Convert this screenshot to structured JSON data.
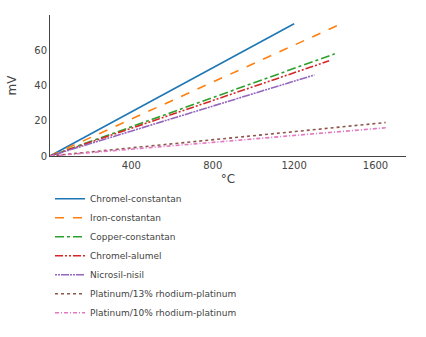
{
  "chart_data": {
    "type": "line",
    "xlabel": "°C",
    "ylabel": "mV",
    "xlim": [
      0,
      1750
    ],
    "ylim": [
      0,
      80
    ],
    "xticks": [
      400,
      800,
      1200,
      1600
    ],
    "yticks": [
      0,
      20,
      40,
      60
    ],
    "grid": false,
    "legend": "bottom",
    "series": [
      {
        "name": "Chromel-constantan",
        "x": [
          0,
          1200
        ],
        "values": [
          0,
          75
        ],
        "line_style": "solid"
      },
      {
        "name": "Iron-constantan",
        "x": [
          0,
          1450
        ],
        "values": [
          0,
          76
        ],
        "line_style": "dashed"
      },
      {
        "name": "Copper-constantan",
        "x": [
          0,
          1400
        ],
        "values": [
          0,
          58
        ],
        "line_style": "dashdot"
      },
      {
        "name": "Chromel-alumel",
        "x": [
          0,
          1372
        ],
        "values": [
          0,
          54
        ],
        "line_style": "dashdotdot"
      },
      {
        "name": "Nicrosil-nisil",
        "x": [
          0,
          1300
        ],
        "values": [
          0,
          46
        ],
        "line_style": "dotteddash"
      },
      {
        "name": "Platinum/13% rhodium-platinum",
        "x": [
          0,
          1650
        ],
        "values": [
          0,
          19
        ],
        "line_style": "dotted"
      },
      {
        "name": "Platinum/10% rhodium-platinum",
        "x": [
          0,
          1650
        ],
        "values": [
          0,
          16
        ],
        "line_style": "finedash"
      }
    ]
  }
}
